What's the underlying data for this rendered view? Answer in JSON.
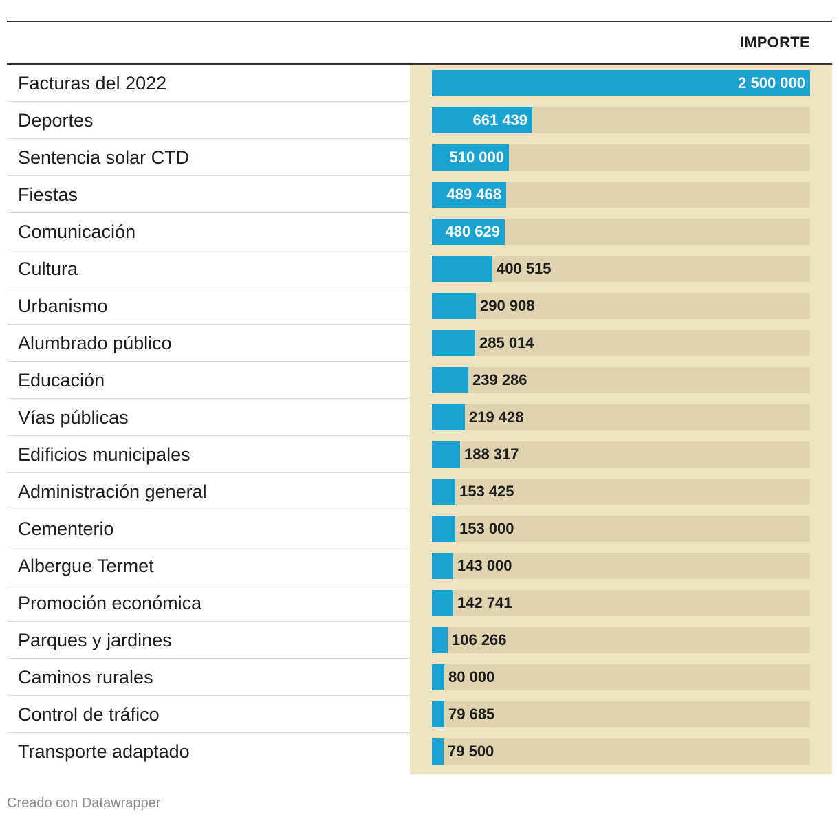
{
  "chart_data": {
    "type": "bar",
    "orientation": "horizontal",
    "column_header": "IMPORTE",
    "categories": [
      "Facturas del 2022",
      "Deportes",
      "Sentencia solar CTD",
      "Fiestas",
      "Comunicación",
      "Cultura",
      "Urbanismo",
      "Alumbrado público",
      "Educación",
      "Vías públicas",
      "Edificios municipales",
      "Administración general",
      "Cementerio",
      "Albergue Termet",
      "Promoción económica",
      "Parques y jardines",
      "Caminos rurales",
      "Control de tráfico",
      "Transporte adaptado"
    ],
    "values": [
      2500000,
      661439,
      510000,
      489468,
      480629,
      400515,
      290908,
      285014,
      239286,
      219428,
      188317,
      153425,
      153000,
      143000,
      142741,
      106266,
      80000,
      79685,
      79500
    ],
    "value_labels": [
      "2 500 000",
      "661 439",
      "510 000",
      "489 468",
      "480 629",
      "400 515",
      "290 908",
      "285 014",
      "239 286",
      "219 428",
      "188 317",
      "153 425",
      "153 000",
      "143 000",
      "142 741",
      "106 266",
      "80 000",
      "79 685",
      "79 500"
    ],
    "xlim": [
      0,
      2500000
    ],
    "colors": {
      "bar": "#1aa3d1",
      "track": "#e0d4b0",
      "column_background": "#efe4c2"
    }
  },
  "footer": {
    "credit": "Creado con Datawrapper"
  }
}
